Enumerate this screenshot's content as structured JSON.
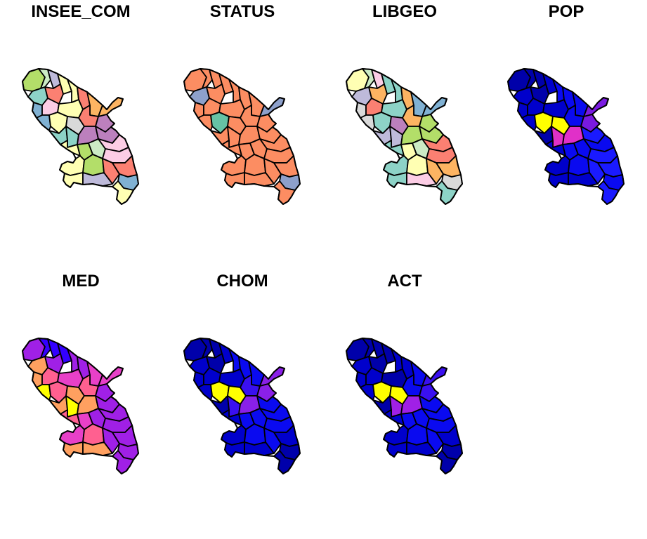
{
  "panels": [
    {
      "title": "INSEE_COM",
      "palette": "qual_set3",
      "mode": "qual"
    },
    {
      "title": "STATUS",
      "palette": "status",
      "mode": "status"
    },
    {
      "title": "LIBGEO",
      "palette": "qual_set3b",
      "mode": "qual"
    },
    {
      "title": "POP",
      "palette": "seq_pop",
      "mode": "seq"
    },
    {
      "title": "MED",
      "palette": "seq_med",
      "mode": "seq"
    },
    {
      "title": "CHOM",
      "palette": "seq_chom",
      "mode": "seq"
    },
    {
      "title": "ACT",
      "palette": "seq_act",
      "mode": "seq"
    }
  ],
  "colors": {
    "qual_set3": [
      "#8DD3C7",
      "#FFFFB3",
      "#BEBADA",
      "#FB8072",
      "#80B1D3",
      "#FDB462",
      "#B3DE69",
      "#FCCDE5",
      "#D9D9D9",
      "#BC80BD",
      "#CCEBC5",
      "#FFED6F"
    ],
    "qual_set3b": [
      "#BEBADA",
      "#8DD3C7",
      "#FCCDE5",
      "#FDB462",
      "#D9D9D9",
      "#80B1D3",
      "#FFFFB3",
      "#FB8072",
      "#BC80BD",
      "#B3DE69",
      "#CCEBC5",
      "#FFED6F"
    ],
    "status": {
      "main": "#FC8D62",
      "prefecture": "#66C2A5",
      "sub": "#8DA0CB"
    },
    "seq_pop": [
      "#0000AA",
      "#0000CC",
      "#0A0AF0",
      "#1A1AFF",
      "#7A1AE0",
      "#E030C8",
      "#FFFF00"
    ],
    "seq_med": [
      "#0000CC",
      "#3300FF",
      "#A020E6",
      "#E840C8",
      "#FF6090",
      "#FFA060",
      "#FFFF00"
    ],
    "seq_chom": [
      "#0000AA",
      "#0000CC",
      "#0A0AF0",
      "#3A10F0",
      "#8A20E8",
      "#FFFF00"
    ],
    "seq_act": [
      "#0000AA",
      "#0000CC",
      "#0A0AF0",
      "#3A10F0",
      "#A020E6",
      "#FFFF00"
    ]
  }
}
